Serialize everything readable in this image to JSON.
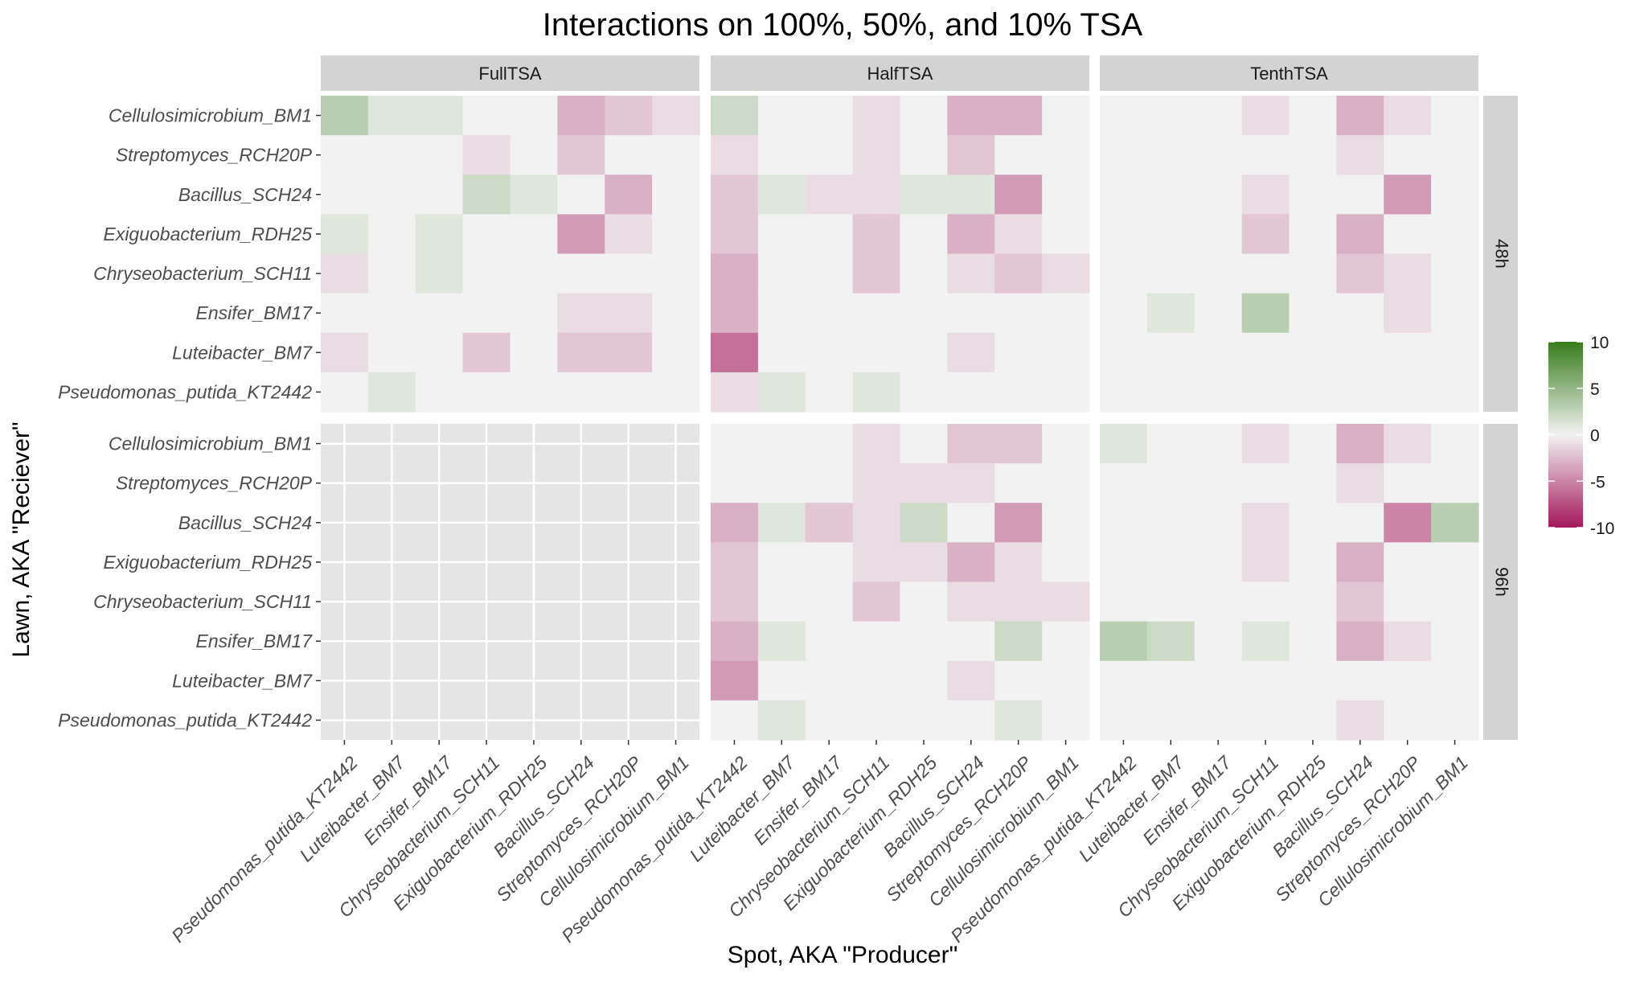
{
  "chart_data": {
    "type": "heatmap",
    "title": "Interactions on 100%, 50%, and 10% TSA",
    "xlabel": "Spot, AKA \"Producer\"",
    "ylabel": "Lawn, AKA \"Reciever\"",
    "producers": [
      "Pseudomonas_putida_KT2442",
      "Luteibacter_BM7",
      "Ensifer_BM17",
      "Chryseobacterium_SCH11",
      "Exiguobacterium_RDH25",
      "Bacillus_SCH24",
      "Streptomyces_RCH20P",
      "Cellulosimicrobium_BM1"
    ],
    "receivers": [
      "Cellulosimicrobium_BM1",
      "Streptomyces_RCH20P",
      "Bacillus_SCH24",
      "Exiguobacterium_RDH25",
      "Chryseobacterium_SCH11",
      "Ensifer_BM17",
      "Luteibacter_BM7",
      "Pseudomonas_putida_KT2442"
    ],
    "col_facets": [
      "FullTSA",
      "HalfTSA",
      "TenthTSA"
    ],
    "row_facets": [
      "48h",
      "96h"
    ],
    "legend": {
      "min": -10,
      "max": 10,
      "ticks": [
        10,
        5,
        0,
        -5,
        -10
      ],
      "colors": {
        "low": "#a3175a",
        "mid": "#f2f2f2",
        "high": "#367c1a"
      }
    },
    "colors": {
      "panel_bg": "#f2f2f2",
      "missing_panel_bg": "#e5e5e5",
      "strip_bg": "#d3d3d3"
    },
    "panels": {
      "48h": {
        "FullTSA": [
          [
            3,
            1,
            1,
            0,
            0,
            -3,
            -2,
            -1
          ],
          [
            0,
            0,
            0,
            -1,
            0,
            -2,
            0,
            0
          ],
          [
            0,
            0,
            0,
            2,
            1,
            0,
            -3,
            0
          ],
          [
            1,
            0,
            1,
            0,
            0,
            -4,
            -1,
            0
          ],
          [
            -1,
            0,
            1,
            0,
            0,
            0,
            0,
            0
          ],
          [
            0,
            0,
            0,
            0,
            0,
            -1,
            -1,
            0
          ],
          [
            -1,
            0,
            0,
            -2,
            0,
            -2,
            -2,
            0
          ],
          [
            0,
            1,
            0,
            0,
            0,
            0,
            0,
            0
          ]
        ],
        "HalfTSA": [
          [
            2,
            0,
            0,
            -1,
            0,
            -3,
            -3,
            0
          ],
          [
            -1,
            0,
            0,
            -1,
            0,
            -2,
            0,
            0
          ],
          [
            -2,
            1,
            -1,
            -1,
            1,
            1,
            -4,
            0
          ],
          [
            -2,
            0,
            0,
            -2,
            0,
            -3,
            -1,
            0
          ],
          [
            -3,
            0,
            0,
            -2,
            0,
            -1,
            -2,
            -1
          ],
          [
            -3,
            0,
            0,
            0,
            0,
            0,
            0,
            0
          ],
          [
            -6,
            0,
            0,
            0,
            0,
            -1,
            0,
            0
          ],
          [
            -1,
            1,
            0,
            1,
            0,
            0,
            0,
            0
          ]
        ],
        "TenthTSA": [
          [
            0,
            0,
            0,
            -1,
            0,
            -3,
            -1,
            0
          ],
          [
            0,
            0,
            0,
            0,
            0,
            -1,
            0,
            0
          ],
          [
            0,
            0,
            0,
            -1,
            0,
            0,
            -4,
            0
          ],
          [
            0,
            0,
            0,
            -2,
            0,
            -3,
            0,
            0
          ],
          [
            0,
            0,
            0,
            0,
            0,
            -2,
            -1,
            0
          ],
          [
            0,
            1,
            0,
            3,
            0,
            0,
            -1,
            0
          ],
          [
            0,
            0,
            0,
            0,
            0,
            0,
            0,
            0
          ],
          [
            0,
            0,
            0,
            0,
            0,
            0,
            0,
            0
          ]
        ]
      },
      "96h": {
        "FullTSA": null,
        "HalfTSA": [
          [
            0,
            0,
            0,
            -1,
            0,
            -2,
            -2,
            0
          ],
          [
            0,
            0,
            0,
            -1,
            -1,
            -1,
            0,
            0
          ],
          [
            -3,
            1,
            -2,
            -1,
            2,
            0,
            -4,
            0
          ],
          [
            -2,
            0,
            0,
            -1,
            -1,
            -3,
            -1,
            0
          ],
          [
            -2,
            0,
            0,
            -2,
            0,
            -1,
            -1,
            -1
          ],
          [
            -3,
            1,
            0,
            0,
            0,
            0,
            2,
            0
          ],
          [
            -4,
            0,
            0,
            0,
            0,
            -1,
            0,
            0
          ],
          [
            0,
            1,
            0,
            0,
            0,
            0,
            1,
            0
          ]
        ],
        "TenthTSA": [
          [
            1,
            0,
            0,
            -1,
            0,
            -3,
            -1,
            0
          ],
          [
            0,
            0,
            0,
            0,
            0,
            -1,
            0,
            0
          ],
          [
            0,
            0,
            0,
            -1,
            0,
            0,
            -5,
            3
          ],
          [
            0,
            0,
            0,
            -1,
            0,
            -3,
            0,
            0
          ],
          [
            0,
            0,
            0,
            0,
            0,
            -2,
            0,
            0
          ],
          [
            3,
            2,
            0,
            1,
            0,
            -3,
            -1,
            0
          ],
          [
            0,
            0,
            0,
            0,
            0,
            0,
            0,
            0
          ],
          [
            0,
            0,
            0,
            0,
            0,
            -1,
            0,
            0
          ]
        ]
      }
    }
  }
}
